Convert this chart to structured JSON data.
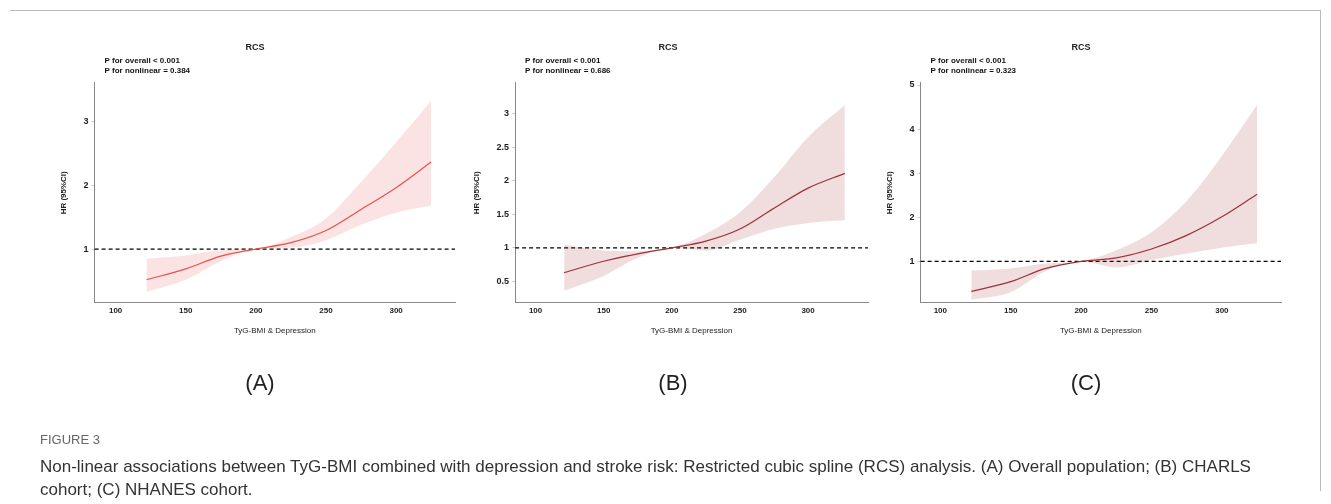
{
  "chart_data": [
    {
      "type": "line",
      "title": "RCS",
      "xlabel": "TyG-BMI & Depression",
      "ylabel": "HR (95%CI)",
      "xlim": [
        85,
        342
      ],
      "xticks": [
        100,
        150,
        200,
        250,
        300
      ],
      "ylim": [
        0.16,
        3.6
      ],
      "yticks": [
        1,
        2,
        3
      ],
      "legend": false,
      "grid": false,
      "marker": "none",
      "line_style": "solid",
      "series": [
        {
          "color": "#e8534f",
          "x": [
            122,
            150,
            175,
            200,
            225,
            250,
            275,
            300,
            325
          ],
          "values": [
            0.52,
            0.69,
            0.89,
            1,
            1.1,
            1.29,
            1.62,
            1.96,
            2.36
          ],
          "lower": [
            0.33,
            0.52,
            0.81,
            1,
            1.02,
            1.14,
            1.38,
            1.57,
            1.68
          ],
          "upper": [
            0.85,
            0.9,
            0.98,
            1,
            1.19,
            1.48,
            2.05,
            2.67,
            3.32
          ]
        }
      ],
      "ref_lines": [
        {
          "axis": "y",
          "value": 1,
          "line_style": "dashed",
          "color": "#000000"
        }
      ],
      "annotations": [
        "P for overall < 0.001",
        "P for nonlinear = 0.384",
        "(A)"
      ]
    },
    {
      "type": "line",
      "title": "RCS",
      "xlabel": "TyG-BMI & Depression",
      "ylabel": "HR (95%CI)",
      "xlim": [
        85,
        344
      ],
      "xticks": [
        100,
        150,
        200,
        250,
        300
      ],
      "ylim": [
        0.18,
        3.46
      ],
      "yticks": [
        0.5,
        1,
        1.5,
        2,
        2.5,
        3
      ],
      "legend": false,
      "grid": false,
      "marker": "none",
      "line_style": "solid",
      "series": [
        {
          "color": "#a0303a",
          "x": [
            121,
            150,
            175,
            200,
            225,
            250,
            275,
            300,
            327
          ],
          "values": [
            0.63,
            0.8,
            0.91,
            1,
            1.1,
            1.28,
            1.59,
            1.89,
            2.11
          ],
          "lower": [
            0.36,
            0.58,
            0.85,
            1,
            0.96,
            1.12,
            1.28,
            1.37,
            1.41
          ],
          "upper": [
            1.05,
            0.96,
            0.95,
            1,
            1.21,
            1.53,
            2.05,
            2.65,
            3.13
          ]
        }
      ],
      "ref_lines": [
        {
          "axis": "y",
          "value": 1,
          "line_style": "dashed",
          "color": "#000000"
        }
      ],
      "annotations": [
        "P for overall < 0.001",
        "P for nonlinear = 0.686",
        "(B)"
      ]
    },
    {
      "type": "line",
      "title": "RCS",
      "xlabel": "TyG-BMI & Depression",
      "ylabel": "HR (95%CI)",
      "xlim": [
        86,
        342
      ],
      "xticks": [
        100,
        150,
        200,
        250,
        300
      ],
      "ylim": [
        0.06,
        5.05
      ],
      "yticks": [
        1,
        2,
        3,
        4,
        5
      ],
      "legend": false,
      "grid": false,
      "marker": "none",
      "line_style": "solid",
      "series": [
        {
          "color": "#a0303a",
          "x": [
            122,
            150,
            175,
            200,
            225,
            250,
            275,
            300,
            325
          ],
          "values": [
            0.32,
            0.54,
            0.84,
            1,
            1.08,
            1.28,
            1.59,
            2.01,
            2.52
          ],
          "lower": [
            0.13,
            0.3,
            0.78,
            1,
            0.86,
            1.03,
            1.18,
            1.31,
            1.41
          ],
          "upper": [
            0.79,
            0.84,
            0.95,
            1,
            1.25,
            1.66,
            2.37,
            3.39,
            4.55
          ]
        }
      ],
      "ref_lines": [
        {
          "axis": "y",
          "value": 1,
          "line_style": "dashed",
          "color": "#000000"
        }
      ],
      "annotations": [
        "P for overall < 0.001",
        "P for nonlinear = 0.323",
        "(C)",
        "FIGURE 3",
        "Non-linear associations between TyG-BMI combined with depression and stroke risk: Restricted cubic spline (RCS) analysis. (A) Overall population; (B) CHARLS cohort; (C) NHANES cohort."
      ]
    }
  ]
}
